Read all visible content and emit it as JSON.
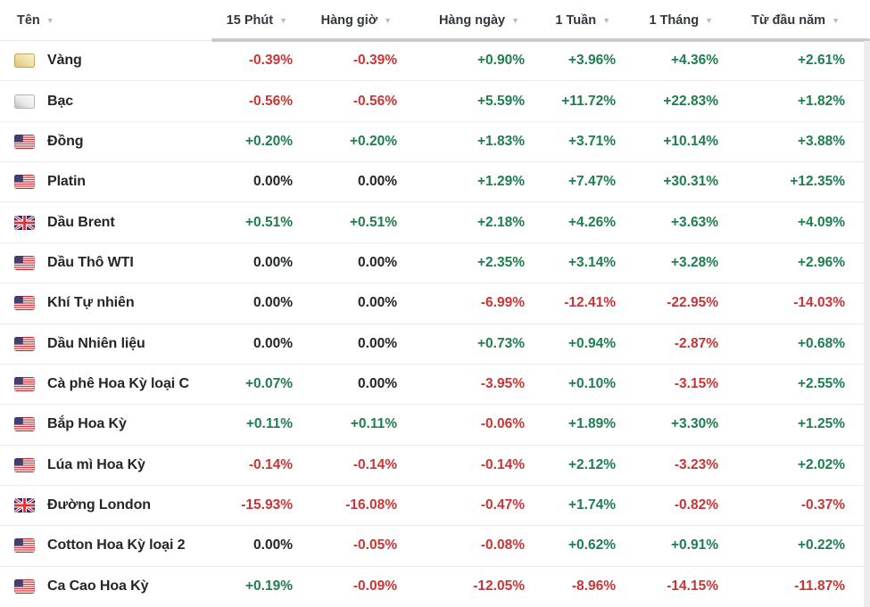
{
  "header": {
    "name_column": {
      "label": "Tên"
    },
    "columns": [
      {
        "label": "15 Phút"
      },
      {
        "label": "Hàng giờ"
      },
      {
        "label": "Hàng ngày"
      },
      {
        "label": "1 Tuần"
      },
      {
        "label": "1 Tháng"
      },
      {
        "label": "Từ đầu năm"
      }
    ]
  },
  "icons": {
    "sort_arrow": "▼"
  },
  "colors": {
    "positive": "#1e7e4f",
    "negative": "#c73635",
    "neutral": "#232628"
  },
  "table": {
    "rows": [
      {
        "name": "Vàng",
        "icon": "gold-bar-icon",
        "values": [
          "-0.39%",
          "-0.39%",
          "+0.90%",
          "+3.96%",
          "+4.36%",
          "+2.61%"
        ]
      },
      {
        "name": "Bạc",
        "icon": "silver-bar-icon",
        "values": [
          "-0.56%",
          "-0.56%",
          "+5.59%",
          "+11.72%",
          "+22.83%",
          "+1.82%"
        ]
      },
      {
        "name": "Đồng",
        "icon": "us-flag-icon",
        "values": [
          "+0.20%",
          "+0.20%",
          "+1.83%",
          "+3.71%",
          "+10.14%",
          "+3.88%"
        ]
      },
      {
        "name": "Platin",
        "icon": "us-flag-icon",
        "values": [
          "0.00%",
          "0.00%",
          "+1.29%",
          "+7.47%",
          "+30.31%",
          "+12.35%"
        ]
      },
      {
        "name": "Dầu Brent",
        "icon": "uk-flag-icon",
        "values": [
          "+0.51%",
          "+0.51%",
          "+2.18%",
          "+4.26%",
          "+3.63%",
          "+4.09%"
        ]
      },
      {
        "name": "Dầu Thô WTI",
        "icon": "us-flag-icon",
        "values": [
          "0.00%",
          "0.00%",
          "+2.35%",
          "+3.14%",
          "+3.28%",
          "+2.96%"
        ]
      },
      {
        "name": "Khí Tự nhiên",
        "icon": "us-flag-icon",
        "values": [
          "0.00%",
          "0.00%",
          "-6.99%",
          "-12.41%",
          "-22.95%",
          "-14.03%"
        ]
      },
      {
        "name": "Dầu Nhiên liệu",
        "icon": "us-flag-icon",
        "values": [
          "0.00%",
          "0.00%",
          "+0.73%",
          "+0.94%",
          "-2.87%",
          "+0.68%"
        ]
      },
      {
        "name": "Cà phê Hoa Kỳ loại C",
        "icon": "us-flag-icon",
        "values": [
          "+0.07%",
          "0.00%",
          "-3.95%",
          "+0.10%",
          "-3.15%",
          "+2.55%"
        ]
      },
      {
        "name": "Bắp Hoa Kỳ",
        "icon": "us-flag-icon",
        "values": [
          "+0.11%",
          "+0.11%",
          "-0.06%",
          "+1.89%",
          "+3.30%",
          "+1.25%"
        ]
      },
      {
        "name": "Lúa mì Hoa Kỳ",
        "icon": "us-flag-icon",
        "values": [
          "-0.14%",
          "-0.14%",
          "-0.14%",
          "+2.12%",
          "-3.23%",
          "+2.02%"
        ]
      },
      {
        "name": "Đường London",
        "icon": "uk-flag-icon",
        "values": [
          "-15.93%",
          "-16.08%",
          "-0.47%",
          "+1.74%",
          "-0.82%",
          "-0.37%"
        ]
      },
      {
        "name": "Cotton Hoa Kỳ loại 2",
        "icon": "us-flag-icon",
        "values": [
          "0.00%",
          "-0.05%",
          "-0.08%",
          "+0.62%",
          "+0.91%",
          "+0.22%"
        ]
      },
      {
        "name": "Ca Cao Hoa Kỳ",
        "icon": "us-flag-icon",
        "values": [
          "+0.19%",
          "-0.09%",
          "-12.05%",
          "-8.96%",
          "-14.15%",
          "-11.87%"
        ]
      }
    ]
  }
}
